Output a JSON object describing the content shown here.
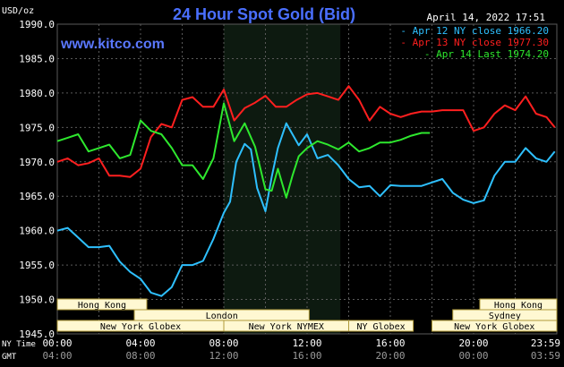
{
  "title": "24 Hour Spot Gold (Bid)",
  "currency_label": "USD/oz",
  "date_stamp": "April 14, 2022 17:51",
  "watermark": "www.kitco.com",
  "colors": {
    "background": "#000000",
    "grid": "#5a5a5a",
    "axis_text": "#ffffff",
    "title": "#4a6fff",
    "watermark": "#5a78ff",
    "night_band": "#0d1a10",
    "session_fill": "#fff8d2",
    "session_border": "#b09a3a",
    "session_text": "#000000"
  },
  "chart_data": {
    "type": "line",
    "title": "24 Hour Spot Gold (Bid)",
    "ylabel": "USD/oz",
    "ylim": [
      1945.0,
      1990.0
    ],
    "xlim": [
      0,
      24
    ],
    "y_ticks": [
      "1990.0",
      "1985.0",
      "1980.0",
      "1975.0",
      "1970.0",
      "1965.0",
      "1960.0",
      "1955.0",
      "1950.0",
      "1945.0"
    ],
    "x_ticks_ny": [
      "00:00",
      "04:00",
      "08:00",
      "12:00",
      "16:00",
      "20:00",
      "23:59"
    ],
    "x_ticks_gmt": [
      "04:00",
      "08:00",
      "12:00",
      "16:00",
      "20:00",
      "00:00",
      "03:59"
    ],
    "x_tick_hours": [
      0,
      4,
      8,
      12,
      16,
      20,
      24
    ],
    "axis_labels": {
      "ny": "NY Time",
      "gmt": "GMT"
    },
    "grid": true,
    "legend_position": "top-right",
    "shaded_range_hours": [
      8.0,
      13.6
    ],
    "series": [
      {
        "name": "Apr 12",
        "legend": "Apr 12 NY close 1966.20",
        "color": "#2ec0ff",
        "x": [
          0,
          0.5,
          1.0,
          1.5,
          2.0,
          2.5,
          3.0,
          3.5,
          4.0,
          4.5,
          5.0,
          5.5,
          6.0,
          6.5,
          7.0,
          7.5,
          8.0,
          8.3,
          8.6,
          9.0,
          9.3,
          9.6,
          10.0,
          10.3,
          10.6,
          11.0,
          11.3,
          11.6,
          12.0,
          12.5,
          13.0,
          13.5,
          14.0,
          14.5,
          15.0,
          15.5,
          16.0,
          16.5,
          17.0,
          17.5,
          18.0,
          18.5,
          19.0,
          19.5,
          20.0,
          20.5,
          21.0,
          21.5,
          22.0,
          22.5,
          23.0,
          23.5,
          23.9
        ],
        "y": [
          1960.0,
          1960.4,
          1959.0,
          1957.6,
          1957.6,
          1957.8,
          1955.5,
          1954.0,
          1953.0,
          1951.0,
          1950.5,
          1951.8,
          1955.0,
          1955.0,
          1955.6,
          1958.8,
          1962.6,
          1964.2,
          1970.0,
          1972.6,
          1971.8,
          1966.2,
          1962.8,
          1967.8,
          1972.0,
          1975.6,
          1974.0,
          1972.4,
          1974.0,
          1970.5,
          1971.0,
          1969.5,
          1967.5,
          1966.3,
          1966.5,
          1965.0,
          1966.6,
          1966.5,
          1966.5,
          1966.5,
          1967.0,
          1967.5,
          1965.5,
          1964.5,
          1964.0,
          1964.4,
          1968.0,
          1970.0,
          1970.0,
          1972.0,
          1970.5,
          1970.0,
          1971.5
        ]
      },
      {
        "name": "Apr 13",
        "legend": "Apr 13 NY close 1977.30",
        "color": "#ff1f1f",
        "x": [
          0,
          0.5,
          1.0,
          1.5,
          2.0,
          2.5,
          3.0,
          3.5,
          4.0,
          4.5,
          5.0,
          5.5,
          6.0,
          6.5,
          7.0,
          7.5,
          8.0,
          8.5,
          9.0,
          9.5,
          10.0,
          10.5,
          11.0,
          11.5,
          12.0,
          12.5,
          13.0,
          13.5,
          14.0,
          14.5,
          15.0,
          15.5,
          16.0,
          16.5,
          17.0,
          17.5,
          18.0,
          18.5,
          19.0,
          19.5,
          20.0,
          20.5,
          21.0,
          21.5,
          22.0,
          22.5,
          23.0,
          23.5,
          23.9
        ],
        "y": [
          1970.0,
          1970.5,
          1969.5,
          1969.8,
          1970.5,
          1968.0,
          1968.0,
          1967.8,
          1969.0,
          1973.6,
          1975.5,
          1975.0,
          1979.0,
          1979.4,
          1978.0,
          1978.0,
          1980.5,
          1976.0,
          1977.8,
          1978.6,
          1979.6,
          1978.0,
          1978.0,
          1979.0,
          1979.8,
          1980.0,
          1979.5,
          1979.0,
          1981.0,
          1979.0,
          1976.0,
          1978.0,
          1977.0,
          1976.5,
          1977.0,
          1977.3,
          1977.3,
          1977.5,
          1977.5,
          1977.5,
          1974.5,
          1975.0,
          1977.0,
          1978.2,
          1977.5,
          1979.5,
          1977.0,
          1976.5,
          1975.0
        ]
      },
      {
        "name": "Apr 14",
        "legend": "Apr 14 Last 1974.20",
        "color": "#2ee82e",
        "x": [
          0,
          0.5,
          1.0,
          1.5,
          2.0,
          2.5,
          3.0,
          3.5,
          4.0,
          4.5,
          5.0,
          5.5,
          6.0,
          6.5,
          7.0,
          7.5,
          8.0,
          8.5,
          9.0,
          9.5,
          10.0,
          10.3,
          10.6,
          11.0,
          11.3,
          11.6,
          12.0,
          12.5,
          13.0,
          13.5,
          14.0,
          14.5,
          15.0,
          15.5,
          16.0,
          16.5,
          17.0,
          17.5,
          17.9
        ],
        "y": [
          1973.0,
          1973.5,
          1974.0,
          1971.5,
          1972.0,
          1972.5,
          1970.5,
          1971.0,
          1976.0,
          1974.5,
          1974.0,
          1972.0,
          1969.5,
          1969.5,
          1967.5,
          1970.5,
          1978.5,
          1973.0,
          1975.6,
          1972.2,
          1966.0,
          1965.8,
          1969.0,
          1964.8,
          1968.0,
          1970.8,
          1972.0,
          1973.0,
          1972.5,
          1971.8,
          1972.8,
          1971.5,
          1972.0,
          1972.8,
          1972.8,
          1973.2,
          1973.8,
          1974.2,
          1974.2
        ]
      }
    ]
  },
  "sessions": [
    {
      "label": "Hong Kong",
      "row": 1,
      "start": 0.0,
      "end": 4.3
    },
    {
      "label": "Hong Kong",
      "row": 1,
      "start": 20.3,
      "end": 24.0
    },
    {
      "label": "London",
      "row": 2,
      "start": 0.0,
      "end": 0.0
    },
    {
      "label": "London",
      "row": 2,
      "start": 3.7,
      "end": 12.1
    },
    {
      "label": "Sydney",
      "row": 2,
      "start": 19.0,
      "end": 24.0
    },
    {
      "label": "New York Globex",
      "row": 3,
      "start": 0.0,
      "end": 8.0
    },
    {
      "label": "New York NYMEX",
      "row": 3,
      "start": 8.0,
      "end": 14.0
    },
    {
      "label": "NY Globex",
      "row": 3,
      "start": 14.0,
      "end": 17.1
    },
    {
      "label": "New York Globex",
      "row": 3,
      "start": 18.0,
      "end": 24.0
    }
  ]
}
